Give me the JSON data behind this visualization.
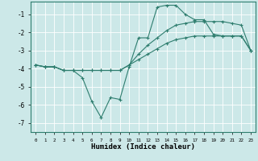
{
  "xlabel": "Humidex (Indice chaleur)",
  "ylabel": "",
  "bg_color": "#cce8e8",
  "grid_color": "#ffffff",
  "line_color": "#2e7d6e",
  "xlim": [
    -0.5,
    23.5
  ],
  "ylim": [
    -7.5,
    -0.3
  ],
  "yticks": [
    -7,
    -6,
    -5,
    -4,
    -3,
    -2,
    -1
  ],
  "xticks": [
    0,
    1,
    2,
    3,
    4,
    5,
    6,
    7,
    8,
    9,
    10,
    11,
    12,
    13,
    14,
    15,
    16,
    17,
    18,
    19,
    20,
    21,
    22,
    23
  ],
  "series": [
    {
      "x": [
        0,
        1,
        2,
        3,
        4,
        5,
        6,
        7,
        8,
        9,
        10,
        11,
        12,
        13,
        14,
        15,
        16,
        17,
        18,
        19,
        20,
        21,
        22,
        23
      ],
      "y": [
        -3.8,
        -3.9,
        -3.9,
        -4.1,
        -4.1,
        -4.1,
        -4.1,
        -4.1,
        -4.1,
        -4.1,
        -3.8,
        -3.5,
        -3.2,
        -2.9,
        -2.6,
        -2.4,
        -2.3,
        -2.2,
        -2.2,
        -2.2,
        -2.2,
        -2.2,
        -2.2,
        -3.0
      ]
    },
    {
      "x": [
        0,
        1,
        2,
        3,
        4,
        5,
        6,
        7,
        8,
        9,
        10,
        11,
        12,
        13,
        14,
        15,
        16,
        17,
        18,
        19,
        20,
        21,
        22,
        23
      ],
      "y": [
        -3.8,
        -3.9,
        -3.9,
        -4.1,
        -4.1,
        -4.5,
        -5.8,
        -6.7,
        -5.6,
        -5.7,
        -3.9,
        -2.3,
        -2.3,
        -0.6,
        -0.5,
        -0.5,
        -1.0,
        -1.3,
        -1.3,
        -2.1,
        -2.2,
        -2.2,
        -2.2,
        -3.0
      ]
    },
    {
      "x": [
        0,
        1,
        2,
        3,
        4,
        5,
        6,
        7,
        8,
        9,
        10,
        11,
        12,
        13,
        14,
        15,
        16,
        17,
        18,
        19,
        20,
        21,
        22,
        23
      ],
      "y": [
        -3.8,
        -3.9,
        -3.9,
        -4.1,
        -4.1,
        -4.1,
        -4.1,
        -4.1,
        -4.1,
        -4.1,
        -3.8,
        -3.2,
        -2.7,
        -2.3,
        -1.9,
        -1.6,
        -1.5,
        -1.4,
        -1.4,
        -1.4,
        -1.4,
        -1.5,
        -1.6,
        -3.0
      ]
    }
  ]
}
